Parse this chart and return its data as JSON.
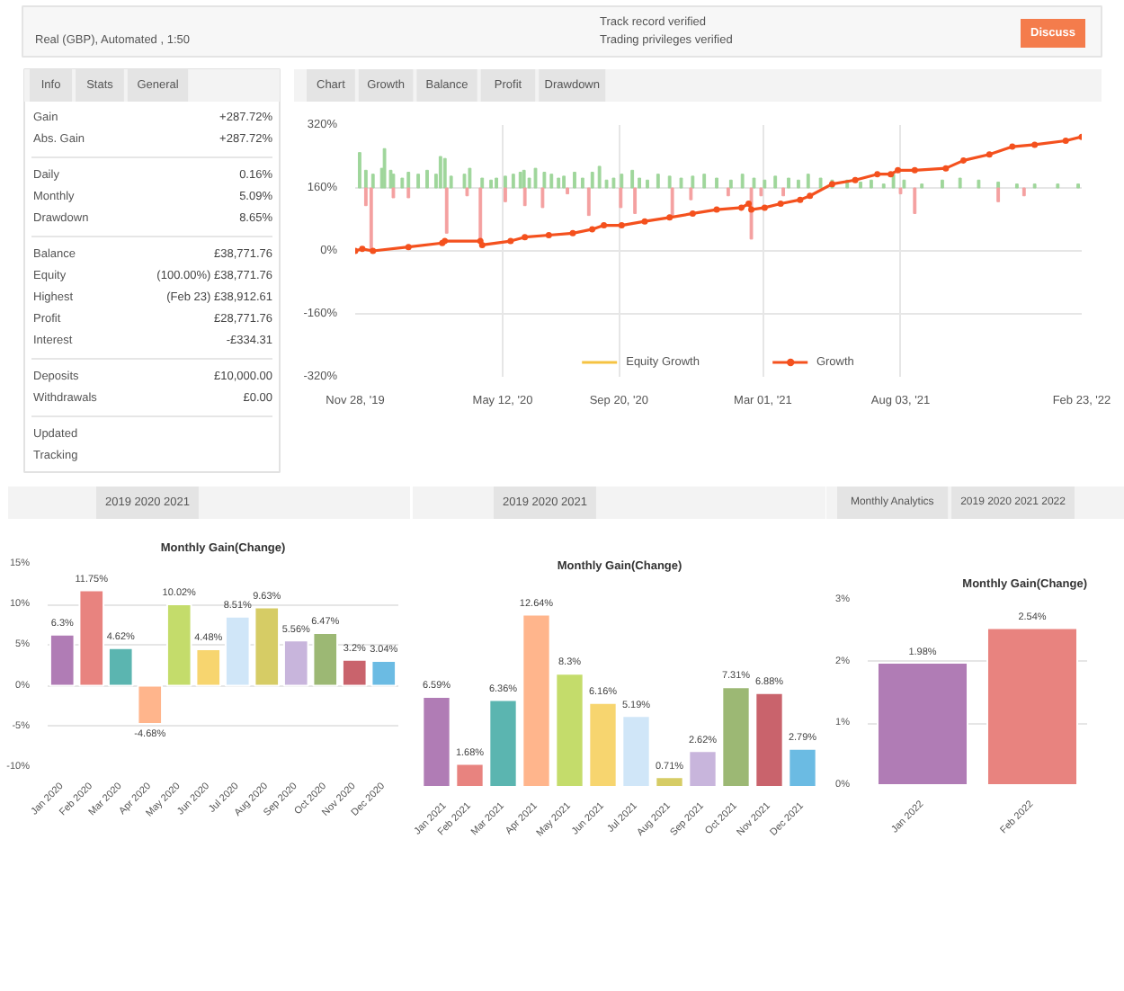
{
  "chart_data": [
    {
      "type": "other",
      "annotations": [
        "Real (GBP), Automated , 1:50",
        "Track record verified",
        "Trading privileges verified",
        "Discuss"
      ]
    },
    {
      "type": "other",
      "annotations": [
        "Info",
        "Stats",
        "General"
      ],
      "categories": [
        "Gain",
        "Abs. Gain",
        "Daily",
        "Monthly",
        "Drawdown",
        "Balance",
        "Equity",
        "Highest",
        "Profit",
        "Interest",
        "Deposits",
        "Withdrawals",
        "Updated",
        "Tracking"
      ],
      "value_labels": [
        "+287.72%",
        "+287.72%",
        "0.16%",
        "5.09%",
        "8.65%",
        "£38,771.76",
        "(100.00%) £38,771.76",
        "(Feb 23) £38,912.61",
        "£28,771.76",
        "-£334.31",
        "£10,000.00",
        "£0.00",
        null,
        null
      ]
    },
    {
      "type": "other",
      "annotations": [
        "Chart",
        "Growth",
        "Balance",
        "Profit",
        "Drawdown"
      ]
    },
    {
      "type": "line",
      "xlim": [
        "2019-11-28",
        "2022-02-23"
      ],
      "xticks": [
        {
          "value": "2019-11-28",
          "label": "Nov 28, '19"
        },
        {
          "value": "2020-05-12",
          "label": "May 12, '20"
        },
        {
          "value": "2020-09-20",
          "label": "Sep 20, '20"
        },
        {
          "value": "2021-03-01",
          "label": "Mar 01, '21"
        },
        {
          "value": "2021-08-03",
          "label": "Aug 03, '21"
        },
        {
          "value": "2022-02-23",
          "label": "Feb 23, '22"
        }
      ],
      "ylim": [
        -320,
        320
      ],
      "yticks": [
        {
          "value": -320,
          "label": "-320%"
        },
        {
          "value": -160,
          "label": "-160%"
        },
        {
          "value": 0,
          "label": "0%"
        },
        {
          "value": 160,
          "label": "160%"
        },
        {
          "value": 320,
          "label": "320%"
        }
      ],
      "grid": true,
      "legend": "bottom",
      "series": [
        {
          "type": "bar",
          "color": "#9fd69b",
          "x": [
            "2019-12-03",
            "2019-12-10",
            "2019-12-18",
            "2019-12-28",
            "2019-12-31",
            "2020-01-07",
            "2020-01-10",
            "2020-01-20",
            "2020-01-27",
            "2020-02-07",
            "2020-02-17",
            "2020-02-27",
            "2020-03-03",
            "2020-03-08",
            "2020-03-15",
            "2020-03-30",
            "2020-04-05",
            "2020-04-19",
            "2020-04-29",
            "2020-05-05",
            "2020-05-15",
            "2020-05-24",
            "2020-06-01",
            "2020-06-05",
            "2020-06-11",
            "2020-06-18",
            "2020-06-28",
            "2020-07-06",
            "2020-07-14",
            "2020-07-20",
            "2020-08-01",
            "2020-08-10",
            "2020-08-21",
            "2020-08-29",
            "2020-09-06",
            "2020-09-14",
            "2020-09-23",
            "2020-10-05",
            "2020-10-13",
            "2020-10-22",
            "2020-11-03",
            "2020-11-16",
            "2020-11-29",
            "2020-12-12",
            "2020-12-25",
            "2021-01-08",
            "2021-01-24",
            "2021-02-06",
            "2021-02-19",
            "2021-03-03",
            "2021-03-15",
            "2021-03-30",
            "2021-04-10",
            "2021-04-21",
            "2021-05-05",
            "2021-05-18",
            "2021-06-04",
            "2021-06-19",
            "2021-07-01",
            "2021-07-15",
            "2021-07-26",
            "2021-08-07",
            "2021-08-27",
            "2021-09-19",
            "2021-10-09",
            "2021-10-30",
            "2021-11-21",
            "2021-12-12",
            "2022-01-01",
            "2022-01-27",
            "2022-02-19"
          ],
          "base": [
            160,
            160,
            160,
            160,
            160,
            160,
            160,
            160,
            160,
            160,
            160,
            160,
            160,
            160,
            160,
            160,
            160,
            160,
            160,
            160,
            160,
            160,
            160,
            160,
            160,
            160,
            160,
            160,
            160,
            160,
            160,
            160,
            160,
            160,
            160,
            160,
            160,
            160,
            160,
            160,
            160,
            160,
            160,
            160,
            160,
            160,
            160,
            160,
            160,
            160,
            160,
            160,
            160,
            160,
            160,
            160,
            160,
            160,
            160,
            160,
            160,
            160,
            160,
            160,
            160,
            160,
            160,
            160,
            160,
            160,
            160
          ],
          "values": [
            90,
            45,
            35,
            50,
            100,
            45,
            35,
            25,
            40,
            35,
            45,
            35,
            80,
            75,
            30,
            35,
            50,
            25,
            20,
            25,
            30,
            35,
            40,
            45,
            25,
            50,
            40,
            35,
            25,
            30,
            40,
            25,
            40,
            55,
            20,
            25,
            35,
            45,
            25,
            20,
            35,
            30,
            25,
            30,
            35,
            25,
            20,
            35,
            25,
            20,
            30,
            25,
            20,
            35,
            25,
            20,
            20,
            15,
            20,
            10,
            35,
            20,
            10,
            20,
            25,
            20,
            15,
            10,
            10,
            10,
            10
          ]
        },
        {
          "type": "bar",
          "color": "#f4a0a0",
          "x": [
            "2019-12-10",
            "2019-12-16",
            "2020-01-10",
            "2020-01-27",
            "2020-03-10",
            "2020-04-02",
            "2020-04-17",
            "2020-05-15",
            "2020-06-06",
            "2020-06-26",
            "2020-07-24",
            "2020-08-17",
            "2020-09-22",
            "2020-10-08",
            "2020-11-19",
            "2020-12-10",
            "2021-01-21",
            "2021-02-16",
            "2021-02-27",
            "2021-03-24",
            "2021-08-03",
            "2021-08-19",
            "2021-11-21",
            "2021-12-20"
          ],
          "base": [
            160,
            160,
            160,
            160,
            160,
            160,
            160,
            160,
            160,
            160,
            160,
            160,
            160,
            160,
            160,
            160,
            160,
            160,
            160,
            160,
            160,
            160,
            160,
            160
          ],
          "values": [
            -45,
            -160,
            -25,
            -25,
            -115,
            -20,
            -135,
            -35,
            -45,
            -50,
            -15,
            -70,
            -50,
            -65,
            -70,
            -30,
            -20,
            -130,
            -20,
            -20,
            -15,
            -65,
            -35,
            -20
          ]
        },
        {
          "name": "Equity Growth",
          "color": "#f5c342"
        },
        {
          "name": "Growth",
          "color": "#f4511e",
          "marker": "circle",
          "x": [
            "2019-11-28",
            "2019-12-06",
            "2019-12-18",
            "2020-01-27",
            "2020-03-05",
            "2020-03-08",
            "2020-04-17",
            "2020-04-19",
            "2020-05-21",
            "2020-06-06",
            "2020-07-03",
            "2020-07-30",
            "2020-08-21",
            "2020-09-03",
            "2020-09-23",
            "2020-10-19",
            "2020-11-16",
            "2020-12-12",
            "2021-01-08",
            "2021-02-05",
            "2021-02-13",
            "2021-02-16",
            "2021-03-03",
            "2021-03-21",
            "2021-04-12",
            "2021-04-23",
            "2021-05-18",
            "2021-06-13",
            "2021-07-08",
            "2021-07-23",
            "2021-07-31",
            "2021-08-19",
            "2021-09-23",
            "2021-10-13",
            "2021-11-11",
            "2021-12-07",
            "2022-01-01",
            "2022-02-05",
            "2022-02-23"
          ],
          "values": [
            0,
            5,
            0,
            10,
            20,
            25,
            25,
            15,
            25,
            35,
            40,
            45,
            55,
            65,
            65,
            75,
            85,
            95,
            105,
            110,
            120,
            105,
            110,
            120,
            130,
            140,
            170,
            180,
            195,
            195,
            205,
            205,
            210,
            230,
            245,
            265,
            270,
            280,
            290
          ]
        }
      ]
    },
    {
      "type": "other",
      "annotations": [
        "2019 2020 2021"
      ]
    },
    {
      "type": "bar",
      "title": "Monthly Gain(Change)",
      "categories": [
        "Jan 2020",
        "Feb 2020",
        "Mar 2020",
        "Apr 2020",
        "May 2020",
        "Jun 2020",
        "Jul 2020",
        "Aug 2020",
        "Sep 2020",
        "Oct 2020",
        "Nov 2020",
        "Dec 2020"
      ],
      "values": [
        6.3,
        11.75,
        4.62,
        -4.68,
        10.02,
        4.48,
        8.51,
        9.63,
        5.56,
        6.47,
        3.2,
        3.04
      ],
      "value_labels": [
        "6.3%",
        "11.75%",
        "4.62%",
        "-4.68%",
        "10.02%",
        "4.48%",
        "8.51%",
        "9.63%",
        "5.56%",
        "6.47%",
        "3.2%",
        "3.04%"
      ],
      "colors": [
        "#b07cb5",
        "#e8837f",
        "#5bb5b0",
        "#ffb58c",
        "#c4dc6b",
        "#f7d56f",
        "#d0e6f8",
        "#d6cc65",
        "#c8b5dc",
        "#9cb874",
        "#c9636c",
        "#6bbbe3"
      ],
      "ylim": [
        -10,
        15
      ],
      "yticks": [
        {
          "value": -10,
          "label": "-10%"
        },
        {
          "value": -5,
          "label": "-5%"
        },
        {
          "value": 0,
          "label": "0%"
        },
        {
          "value": 5,
          "label": "5%"
        },
        {
          "value": 10,
          "label": "10%"
        },
        {
          "value": 15,
          "label": "15%"
        }
      ],
      "grid": "y"
    },
    {
      "type": "other",
      "annotations": [
        "2019 2020 2021"
      ]
    },
    {
      "type": "bar",
      "title": "Monthly Gain(Change)",
      "categories": [
        "Jan 2021",
        "Feb 2021",
        "Mar 2021",
        "Apr 2021",
        "May 2021",
        "Jun 2021",
        "Jul 2021",
        "Aug 2021",
        "Sep 2021",
        "Oct 2021",
        "Nov 2021",
        "Dec 2021"
      ],
      "values": [
        6.59,
        1.68,
        6.36,
        12.64,
        8.3,
        6.16,
        5.19,
        0.71,
        2.62,
        7.31,
        6.88,
        2.79
      ],
      "value_labels": [
        "6.59%",
        "1.68%",
        "6.36%",
        "12.64%",
        "8.3%",
        "6.16%",
        "5.19%",
        "0.71%",
        "2.62%",
        "7.31%",
        "6.88%",
        "2.79%"
      ],
      "colors": [
        "#b07cb5",
        "#e8837f",
        "#5bb5b0",
        "#ffb58c",
        "#c4dc6b",
        "#f7d56f",
        "#d0e6f8",
        "#d6cc65",
        "#c8b5dc",
        "#9cb874",
        "#c9636c",
        "#6bbbe3"
      ],
      "tick_labels": "x"
    },
    {
      "type": "other",
      "annotations": [
        "Monthly Analytics",
        "2019 2020 2021 2022"
      ]
    },
    {
      "type": "bar",
      "title": "Monthly Gain(Change)",
      "categories": [
        "Jan 2022",
        "Feb 2022"
      ],
      "values": [
        1.98,
        2.54
      ],
      "value_labels": [
        "1.98%",
        "2.54%"
      ],
      "colors": [
        "#b07cb5",
        "#e8837f"
      ],
      "ylim": [
        0,
        3
      ],
      "yticks": [
        {
          "value": 0,
          "label": "0%"
        },
        {
          "value": 1,
          "label": "1%"
        },
        {
          "value": 2,
          "label": "2%"
        },
        {
          "value": 3,
          "label": "3%"
        }
      ],
      "grid": "y"
    }
  ]
}
